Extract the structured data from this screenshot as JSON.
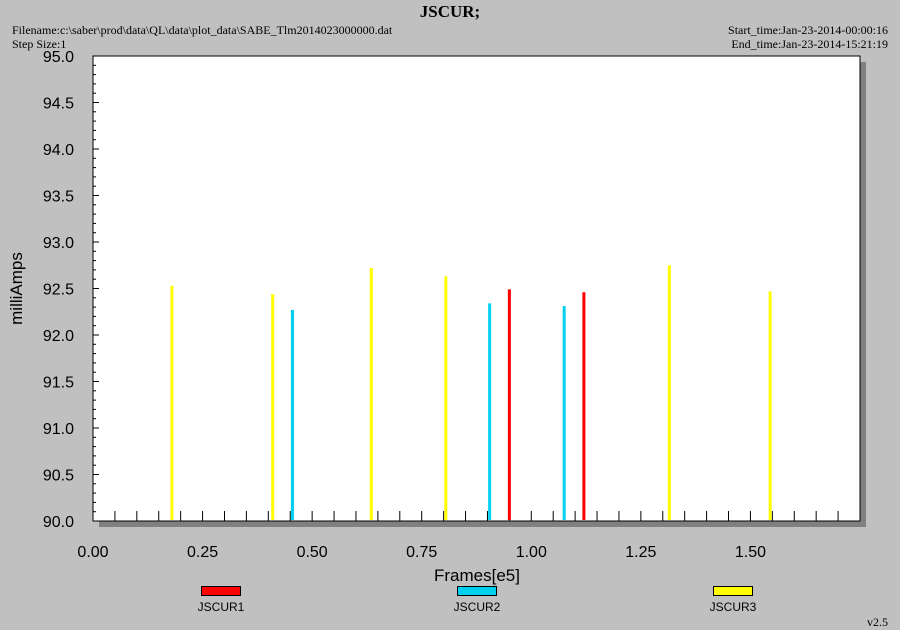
{
  "header": {
    "title": "JSCUR;",
    "filename": "Filename:c:\\saber\\prod\\data\\QL\\data\\plot_data\\SABE_Tlm2014023000000.dat",
    "step_size": "Step Size:1",
    "start_time": "Start_time:Jan-23-2014-00:00:16",
    "end_time": "End_time:Jan-23-2014-15:21:19"
  },
  "version": "v2.5",
  "chart_data": {
    "type": "bar",
    "title": "JSCUR;",
    "xlabel": "Frames[e5]",
    "ylabel": "milliAmps",
    "xlim": [
      0.0,
      1.75
    ],
    "ylim": [
      90.0,
      95.0
    ],
    "x_ticks": [
      "0.00",
      "0.25",
      "0.50",
      "0.75",
      "1.00",
      "1.25",
      "1.50"
    ],
    "y_ticks": [
      "90.0",
      "90.5",
      "91.0",
      "91.5",
      "92.0",
      "92.5",
      "93.0",
      "93.5",
      "94.0",
      "94.5",
      "95.0"
    ],
    "grid": false,
    "legend_position": "bottom",
    "series": [
      {
        "name": "JSCUR1",
        "color": "#ff0000",
        "x": [
          0.95,
          1.12
        ],
        "values": [
          92.49,
          92.46
        ]
      },
      {
        "name": "JSCUR2",
        "color": "#00d0f0",
        "x": [
          0.455,
          0.905,
          1.075
        ],
        "values": [
          92.27,
          92.34,
          92.31
        ]
      },
      {
        "name": "JSCUR3",
        "color": "#ffff00",
        "x": [
          0.18,
          0.41,
          0.635,
          0.805,
          1.315,
          1.545
        ],
        "values": [
          92.53,
          92.44,
          92.72,
          92.63,
          92.75,
          92.47
        ]
      }
    ]
  }
}
